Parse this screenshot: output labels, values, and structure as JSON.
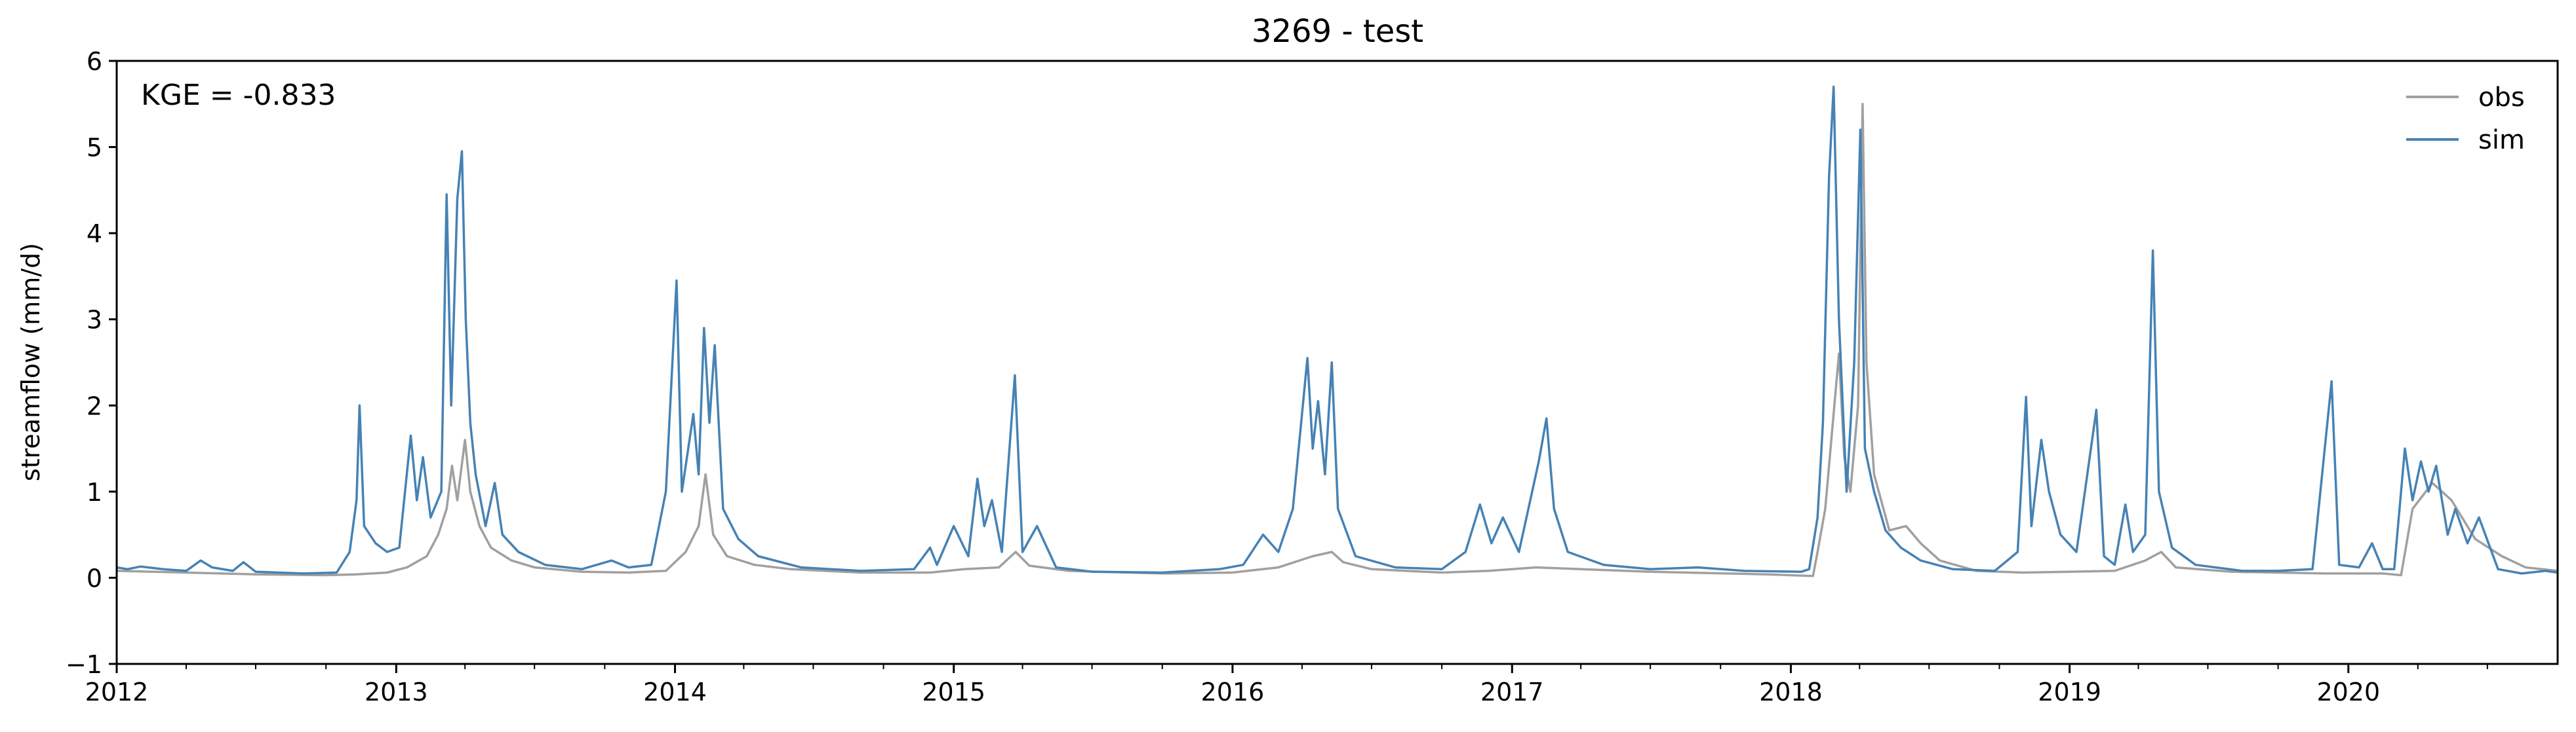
{
  "chart_data": {
    "type": "line",
    "title": "3269 - test",
    "xlabel": "",
    "ylabel": "streamflow (mm/d)",
    "annotation": "KGE = -0.833",
    "xlim": [
      "2012-01-01",
      "2020-10-01"
    ],
    "ylim": [
      -1,
      6
    ],
    "x_ticks": [
      "2012",
      "2013",
      "2014",
      "2015",
      "2016",
      "2017",
      "2018",
      "2019",
      "2020"
    ],
    "y_ticks": [
      "−1",
      "0",
      "1",
      "2",
      "3",
      "4",
      "5",
      "6"
    ],
    "y_tick_values": [
      -1,
      0,
      1,
      2,
      3,
      4,
      5,
      6
    ],
    "grid": false,
    "legend": {
      "placement": "upper right",
      "entries": [
        "obs",
        "sim"
      ]
    },
    "series": [
      {
        "name": "obs",
        "color": "#a0a0a0",
        "points": [
          [
            "2012-01-01",
            0.08
          ],
          [
            "2012-04-01",
            0.06
          ],
          [
            "2012-07-01",
            0.04
          ],
          [
            "2012-10-01",
            0.03
          ],
          [
            "2012-11-10",
            0.04
          ],
          [
            "2012-12-20",
            0.06
          ],
          [
            "2013-01-15",
            0.12
          ],
          [
            "2013-02-10",
            0.25
          ],
          [
            "2013-02-25",
            0.5
          ],
          [
            "2013-03-08",
            0.8
          ],
          [
            "2013-03-15",
            1.3
          ],
          [
            "2013-03-22",
            0.9
          ],
          [
            "2013-04-01",
            1.6
          ],
          [
            "2013-04-08",
            1.0
          ],
          [
            "2013-04-20",
            0.6
          ],
          [
            "2013-05-05",
            0.35
          ],
          [
            "2013-06-01",
            0.2
          ],
          [
            "2013-07-01",
            0.12
          ],
          [
            "2013-09-01",
            0.07
          ],
          [
            "2013-11-01",
            0.06
          ],
          [
            "2013-12-20",
            0.08
          ],
          [
            "2014-01-15",
            0.3
          ],
          [
            "2014-02-01",
            0.6
          ],
          [
            "2014-02-10",
            1.2
          ],
          [
            "2014-02-20",
            0.5
          ],
          [
            "2014-03-10",
            0.25
          ],
          [
            "2014-04-15",
            0.15
          ],
          [
            "2014-06-01",
            0.1
          ],
          [
            "2014-09-01",
            0.06
          ],
          [
            "2014-12-01",
            0.06
          ],
          [
            "2015-01-15",
            0.1
          ],
          [
            "2015-03-01",
            0.12
          ],
          [
            "2015-03-23",
            0.3
          ],
          [
            "2015-04-10",
            0.14
          ],
          [
            "2015-06-01",
            0.08
          ],
          [
            "2015-10-01",
            0.05
          ],
          [
            "2016-01-01",
            0.06
          ],
          [
            "2016-03-01",
            0.12
          ],
          [
            "2016-04-15",
            0.25
          ],
          [
            "2016-05-10",
            0.3
          ],
          [
            "2016-05-25",
            0.18
          ],
          [
            "2016-07-01",
            0.1
          ],
          [
            "2016-10-01",
            0.06
          ],
          [
            "2016-12-01",
            0.08
          ],
          [
            "2017-02-01",
            0.12
          ],
          [
            "2017-04-01",
            0.1
          ],
          [
            "2017-07-01",
            0.07
          ],
          [
            "2017-12-01",
            0.04
          ],
          [
            "2018-01-30",
            0.02
          ],
          [
            "2018-02-05",
            0.3
          ],
          [
            "2018-02-15",
            0.8
          ],
          [
            "2018-03-05",
            2.6
          ],
          [
            "2018-03-12",
            1.4
          ],
          [
            "2018-03-20",
            1.0
          ],
          [
            "2018-03-30",
            2.0
          ],
          [
            "2018-04-05",
            5.5
          ],
          [
            "2018-04-10",
            2.5
          ],
          [
            "2018-04-20",
            1.2
          ],
          [
            "2018-05-10",
            0.55
          ],
          [
            "2018-06-01",
            0.6
          ],
          [
            "2018-06-20",
            0.4
          ],
          [
            "2018-07-15",
            0.2
          ],
          [
            "2018-09-01",
            0.08
          ],
          [
            "2018-11-01",
            0.06
          ],
          [
            "2019-01-01",
            0.07
          ],
          [
            "2019-03-01",
            0.08
          ],
          [
            "2019-04-10",
            0.2
          ],
          [
            "2019-05-01",
            0.3
          ],
          [
            "2019-05-20",
            0.12
          ],
          [
            "2019-08-01",
            0.07
          ],
          [
            "2019-12-01",
            0.05
          ],
          [
            "2020-02-15",
            0.05
          ],
          [
            "2020-03-10",
            0.03
          ],
          [
            "2020-03-25",
            0.8
          ],
          [
            "2020-04-20",
            1.1
          ],
          [
            "2020-05-15",
            0.9
          ],
          [
            "2020-06-15",
            0.45
          ],
          [
            "2020-07-20",
            0.25
          ],
          [
            "2020-08-20",
            0.12
          ],
          [
            "2020-10-01",
            0.08
          ]
        ]
      },
      {
        "name": "sim",
        "color": "#4682b4",
        "points": [
          [
            "2012-01-01",
            0.12
          ],
          [
            "2012-01-15",
            0.1
          ],
          [
            "2012-02-01",
            0.13
          ],
          [
            "2012-03-01",
            0.1
          ],
          [
            "2012-04-01",
            0.08
          ],
          [
            "2012-04-20",
            0.2
          ],
          [
            "2012-05-05",
            0.12
          ],
          [
            "2012-06-01",
            0.08
          ],
          [
            "2012-06-15",
            0.18
          ],
          [
            "2012-07-01",
            0.07
          ],
          [
            "2012-09-01",
            0.05
          ],
          [
            "2012-10-15",
            0.06
          ],
          [
            "2012-11-01",
            0.3
          ],
          [
            "2012-11-10",
            0.9
          ],
          [
            "2012-11-14",
            2.0
          ],
          [
            "2012-11-20",
            0.6
          ],
          [
            "2012-12-05",
            0.4
          ],
          [
            "2012-12-20",
            0.3
          ],
          [
            "2013-01-05",
            0.35
          ],
          [
            "2013-01-20",
            1.65
          ],
          [
            "2013-01-28",
            0.9
          ],
          [
            "2013-02-05",
            1.4
          ],
          [
            "2013-02-15",
            0.7
          ],
          [
            "2013-03-01",
            1.0
          ],
          [
            "2013-03-08",
            4.45
          ],
          [
            "2013-03-14",
            2.0
          ],
          [
            "2013-03-22",
            4.4
          ],
          [
            "2013-03-28",
            4.95
          ],
          [
            "2013-04-02",
            3.0
          ],
          [
            "2013-04-08",
            1.8
          ],
          [
            "2013-04-15",
            1.2
          ],
          [
            "2013-04-28",
            0.6
          ],
          [
            "2013-05-10",
            1.1
          ],
          [
            "2013-05-20",
            0.5
          ],
          [
            "2013-06-10",
            0.3
          ],
          [
            "2013-07-15",
            0.15
          ],
          [
            "2013-09-01",
            0.1
          ],
          [
            "2013-10-10",
            0.2
          ],
          [
            "2013-11-01",
            0.12
          ],
          [
            "2013-12-01",
            0.15
          ],
          [
            "2013-12-20",
            1.0
          ],
          [
            "2014-01-03",
            3.45
          ],
          [
            "2014-01-10",
            1.0
          ],
          [
            "2014-01-25",
            1.9
          ],
          [
            "2014-02-01",
            1.2
          ],
          [
            "2014-02-08",
            2.9
          ],
          [
            "2014-02-15",
            1.8
          ],
          [
            "2014-02-22",
            2.7
          ],
          [
            "2014-03-05",
            0.8
          ],
          [
            "2014-03-25",
            0.45
          ],
          [
            "2014-04-20",
            0.25
          ],
          [
            "2014-06-15",
            0.12
          ],
          [
            "2014-09-01",
            0.08
          ],
          [
            "2014-11-10",
            0.1
          ],
          [
            "2014-12-01",
            0.35
          ],
          [
            "2014-12-10",
            0.15
          ],
          [
            "2015-01-01",
            0.6
          ],
          [
            "2015-01-20",
            0.25
          ],
          [
            "2015-02-01",
            1.15
          ],
          [
            "2015-02-10",
            0.6
          ],
          [
            "2015-02-20",
            0.9
          ],
          [
            "2015-03-05",
            0.3
          ],
          [
            "2015-03-22",
            2.35
          ],
          [
            "2015-04-01",
            0.3
          ],
          [
            "2015-04-20",
            0.6
          ],
          [
            "2015-05-15",
            0.12
          ],
          [
            "2015-07-01",
            0.07
          ],
          [
            "2015-10-01",
            0.06
          ],
          [
            "2015-12-15",
            0.1
          ],
          [
            "2016-01-15",
            0.15
          ],
          [
            "2016-02-10",
            0.5
          ],
          [
            "2016-03-01",
            0.3
          ],
          [
            "2016-03-20",
            0.8
          ],
          [
            "2016-04-08",
            2.55
          ],
          [
            "2016-04-15",
            1.5
          ],
          [
            "2016-04-22",
            2.05
          ],
          [
            "2016-05-01",
            1.2
          ],
          [
            "2016-05-10",
            2.5
          ],
          [
            "2016-05-18",
            0.8
          ],
          [
            "2016-06-10",
            0.25
          ],
          [
            "2016-08-01",
            0.12
          ],
          [
            "2016-10-01",
            0.1
          ],
          [
            "2016-11-01",
            0.3
          ],
          [
            "2016-11-20",
            0.85
          ],
          [
            "2016-12-05",
            0.4
          ],
          [
            "2016-12-20",
            0.7
          ],
          [
            "2017-01-10",
            0.3
          ],
          [
            "2017-02-05",
            1.35
          ],
          [
            "2017-02-15",
            1.85
          ],
          [
            "2017-02-25",
            0.8
          ],
          [
            "2017-03-15",
            0.3
          ],
          [
            "2017-05-01",
            0.15
          ],
          [
            "2017-07-01",
            0.1
          ],
          [
            "2017-09-01",
            0.12
          ],
          [
            "2017-11-01",
            0.08
          ],
          [
            "2018-01-15",
            0.07
          ],
          [
            "2018-01-25",
            0.1
          ],
          [
            "2018-02-05",
            0.7
          ],
          [
            "2018-02-12",
            1.8
          ],
          [
            "2018-02-20",
            4.65
          ],
          [
            "2018-02-26",
            5.7
          ],
          [
            "2018-03-05",
            3.0
          ],
          [
            "2018-03-15",
            1.0
          ],
          [
            "2018-03-25",
            2.5
          ],
          [
            "2018-04-02",
            5.2
          ],
          [
            "2018-04-08",
            1.5
          ],
          [
            "2018-04-20",
            1.0
          ],
          [
            "2018-05-05",
            0.55
          ],
          [
            "2018-05-25",
            0.35
          ],
          [
            "2018-06-20",
            0.2
          ],
          [
            "2018-08-01",
            0.1
          ],
          [
            "2018-09-25",
            0.08
          ],
          [
            "2018-10-25",
            0.3
          ],
          [
            "2018-11-05",
            2.1
          ],
          [
            "2018-11-12",
            0.6
          ],
          [
            "2018-11-25",
            1.6
          ],
          [
            "2018-12-05",
            1.0
          ],
          [
            "2018-12-20",
            0.5
          ],
          [
            "2019-01-10",
            0.3
          ],
          [
            "2019-02-05",
            1.95
          ],
          [
            "2019-02-15",
            0.25
          ],
          [
            "2019-03-01",
            0.15
          ],
          [
            "2019-03-15",
            0.85
          ],
          [
            "2019-03-25",
            0.3
          ],
          [
            "2019-04-10",
            0.5
          ],
          [
            "2019-04-20",
            3.8
          ],
          [
            "2019-04-28",
            1.0
          ],
          [
            "2019-05-15",
            0.35
          ],
          [
            "2019-06-15",
            0.15
          ],
          [
            "2019-08-15",
            0.08
          ],
          [
            "2019-10-01",
            0.08
          ],
          [
            "2019-11-15",
            0.1
          ],
          [
            "2019-12-10",
            2.28
          ],
          [
            "2019-12-20",
            0.15
          ],
          [
            "2020-01-15",
            0.12
          ],
          [
            "2020-02-01",
            0.4
          ],
          [
            "2020-02-15",
            0.1
          ],
          [
            "2020-03-01",
            0.1
          ],
          [
            "2020-03-15",
            1.5
          ],
          [
            "2020-03-25",
            0.9
          ],
          [
            "2020-04-05",
            1.35
          ],
          [
            "2020-04-15",
            1.0
          ],
          [
            "2020-04-25",
            1.3
          ],
          [
            "2020-05-10",
            0.5
          ],
          [
            "2020-05-20",
            0.8
          ],
          [
            "2020-06-05",
            0.4
          ],
          [
            "2020-06-20",
            0.7
          ],
          [
            "2020-07-15",
            0.1
          ],
          [
            "2020-08-15",
            0.05
          ],
          [
            "2020-09-15",
            0.08
          ],
          [
            "2020-10-01",
            0.06
          ]
        ]
      }
    ]
  }
}
